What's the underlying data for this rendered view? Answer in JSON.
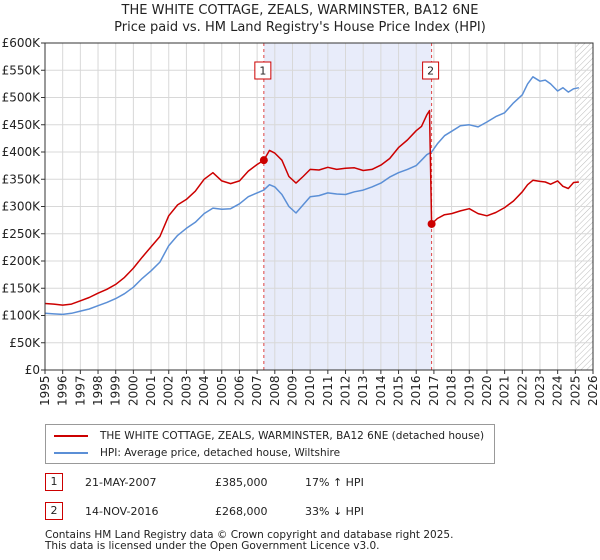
{
  "chart_data": {
    "type": "line",
    "title": "THE WHITE COTTAGE, ZEALS, WARMINSTER, BA12 6NE",
    "subtitle": "Price paid vs. HM Land Registry's House Price Index (HPI)",
    "xlim": [
      1995,
      2026
    ],
    "ylim": [
      0,
      600000
    ],
    "yticks": [
      0,
      50000,
      100000,
      150000,
      200000,
      250000,
      300000,
      350000,
      400000,
      450000,
      500000,
      550000,
      600000
    ],
    "ytick_labels": [
      "£0",
      "£50K",
      "£100K",
      "£150K",
      "£200K",
      "£250K",
      "£300K",
      "£350K",
      "£400K",
      "£450K",
      "£500K",
      "£550K",
      "£600K"
    ],
    "xticks": [
      1995,
      1996,
      1997,
      1998,
      1999,
      2000,
      2001,
      2002,
      2003,
      2004,
      2005,
      2006,
      2007,
      2008,
      2009,
      2010,
      2011,
      2012,
      2013,
      2014,
      2015,
      2016,
      2017,
      2018,
      2019,
      2020,
      2021,
      2022,
      2023,
      2024,
      2025,
      2026
    ],
    "xtick_labels": [
      "1995",
      "1996",
      "1997",
      "1998",
      "1999",
      "2000",
      "2001",
      "2002",
      "2003",
      "2004",
      "2005",
      "2006",
      "2007",
      "2008",
      "2009",
      "2010",
      "2011",
      "2012",
      "2013",
      "2014",
      "2015",
      "2016",
      "2017",
      "2018",
      "2019",
      "2020",
      "2021",
      "2022",
      "2023",
      "2024",
      "2025",
      "2026"
    ],
    "shaded_between": [
      2007.38,
      2016.87
    ],
    "future_hatch_from": 2025.0,
    "series": [
      {
        "name": "THE WHITE COTTAGE, ZEALS, WARMINSTER, BA12 6NE (detached house)",
        "color": "#cc0000",
        "x": [
          1995.0,
          1995.5,
          1996.0,
          1996.5,
          1997.0,
          1997.5,
          1998.0,
          1998.5,
          1999.0,
          1999.5,
          2000.0,
          2000.5,
          2001.0,
          2001.5,
          2002.0,
          2002.5,
          2003.0,
          2003.5,
          2004.0,
          2004.5,
          2005.0,
          2005.5,
          2006.0,
          2006.5,
          2007.0,
          2007.38,
          2007.7,
          2008.0,
          2008.4,
          2008.8,
          2009.2,
          2009.6,
          2010.0,
          2010.5,
          2011.0,
          2011.5,
          2012.0,
          2012.5,
          2013.0,
          2013.5,
          2014.0,
          2014.5,
          2015.0,
          2015.5,
          2016.0,
          2016.3,
          2016.6,
          2016.75,
          2016.87,
          2017.2,
          2017.6,
          2018.0,
          2018.5,
          2019.0,
          2019.5,
          2020.0,
          2020.5,
          2021.0,
          2021.5,
          2022.0,
          2022.3,
          2022.6,
          2023.0,
          2023.3,
          2023.6,
          2024.0,
          2024.3,
          2024.6,
          2024.9,
          2025.2
        ],
        "values": [
          122000,
          121000,
          119000,
          121000,
          127000,
          133000,
          141000,
          148000,
          157000,
          170000,
          187000,
          207000,
          226000,
          245000,
          283000,
          303000,
          313000,
          328000,
          350000,
          362000,
          347000,
          342000,
          347000,
          365000,
          377000,
          385000,
          403000,
          398000,
          385000,
          355000,
          343000,
          355000,
          368000,
          367000,
          372000,
          368000,
          370000,
          371000,
          366000,
          368000,
          376000,
          388000,
          408000,
          422000,
          439000,
          447000,
          468000,
          476000,
          268000,
          278000,
          285000,
          287000,
          292000,
          296000,
          287000,
          283000,
          289000,
          298000,
          310000,
          327000,
          340000,
          348000,
          346000,
          345000,
          341000,
          347000,
          337000,
          333000,
          344000,
          345000
        ]
      },
      {
        "name": "HPI: Average price, detached house, Wiltshire",
        "color": "#5b8fd6",
        "x": [
          1995.0,
          1995.5,
          1996.0,
          1996.5,
          1997.0,
          1997.5,
          1998.0,
          1998.5,
          1999.0,
          1999.5,
          2000.0,
          2000.5,
          2001.0,
          2001.5,
          2002.0,
          2002.5,
          2003.0,
          2003.5,
          2004.0,
          2004.5,
          2005.0,
          2005.5,
          2006.0,
          2006.5,
          2007.0,
          2007.38,
          2007.7,
          2008.0,
          2008.4,
          2008.8,
          2009.2,
          2009.6,
          2010.0,
          2010.5,
          2011.0,
          2011.5,
          2012.0,
          2012.5,
          2013.0,
          2013.5,
          2014.0,
          2014.5,
          2015.0,
          2015.5,
          2016.0,
          2016.3,
          2016.6,
          2016.87,
          2017.2,
          2017.6,
          2018.0,
          2018.5,
          2019.0,
          2019.5,
          2020.0,
          2020.5,
          2021.0,
          2021.5,
          2022.0,
          2022.3,
          2022.6,
          2023.0,
          2023.3,
          2023.6,
          2024.0,
          2024.3,
          2024.6,
          2024.9,
          2025.2
        ],
        "values": [
          104000,
          103000,
          102000,
          104000,
          108000,
          112000,
          118000,
          124000,
          131000,
          140000,
          152000,
          168000,
          182000,
          198000,
          228000,
          247000,
          260000,
          271000,
          287000,
          297000,
          295000,
          296000,
          305000,
          318000,
          325000,
          330000,
          340000,
          336000,
          322000,
          300000,
          288000,
          303000,
          318000,
          320000,
          325000,
          323000,
          322000,
          327000,
          330000,
          336000,
          343000,
          354000,
          362000,
          368000,
          375000,
          385000,
          395000,
          400000,
          415000,
          430000,
          438000,
          448000,
          450000,
          446000,
          455000,
          465000,
          472000,
          490000,
          505000,
          525000,
          538000,
          530000,
          532000,
          525000,
          512000,
          518000,
          510000,
          516000,
          518000
        ]
      }
    ],
    "markers": [
      {
        "label": "1",
        "x": 2007.38,
        "y": 385000
      },
      {
        "label": "2",
        "x": 2016.87,
        "y": 268000
      }
    ]
  },
  "legend": {
    "red_label": "THE WHITE COTTAGE, ZEALS, WARMINSTER, BA12 6NE (detached house)",
    "blue_label": "HPI: Average price, detached house, Wiltshire"
  },
  "transactions": [
    {
      "num": "1",
      "date": "21-MAY-2007",
      "price": "£385,000",
      "hpi": "17% ↑ HPI"
    },
    {
      "num": "2",
      "date": "14-NOV-2016",
      "price": "£268,000",
      "hpi": "33% ↓ HPI"
    }
  ],
  "footer": {
    "line1": "Contains HM Land Registry data © Crown copyright and database right 2025.",
    "line2": "This data is licensed under the Open Government Licence v3.0."
  },
  "colors": {
    "red": "#cc0000",
    "blue": "#5b8fd6",
    "shade": "#e8ecfa",
    "grid": "#d8d8d8"
  }
}
